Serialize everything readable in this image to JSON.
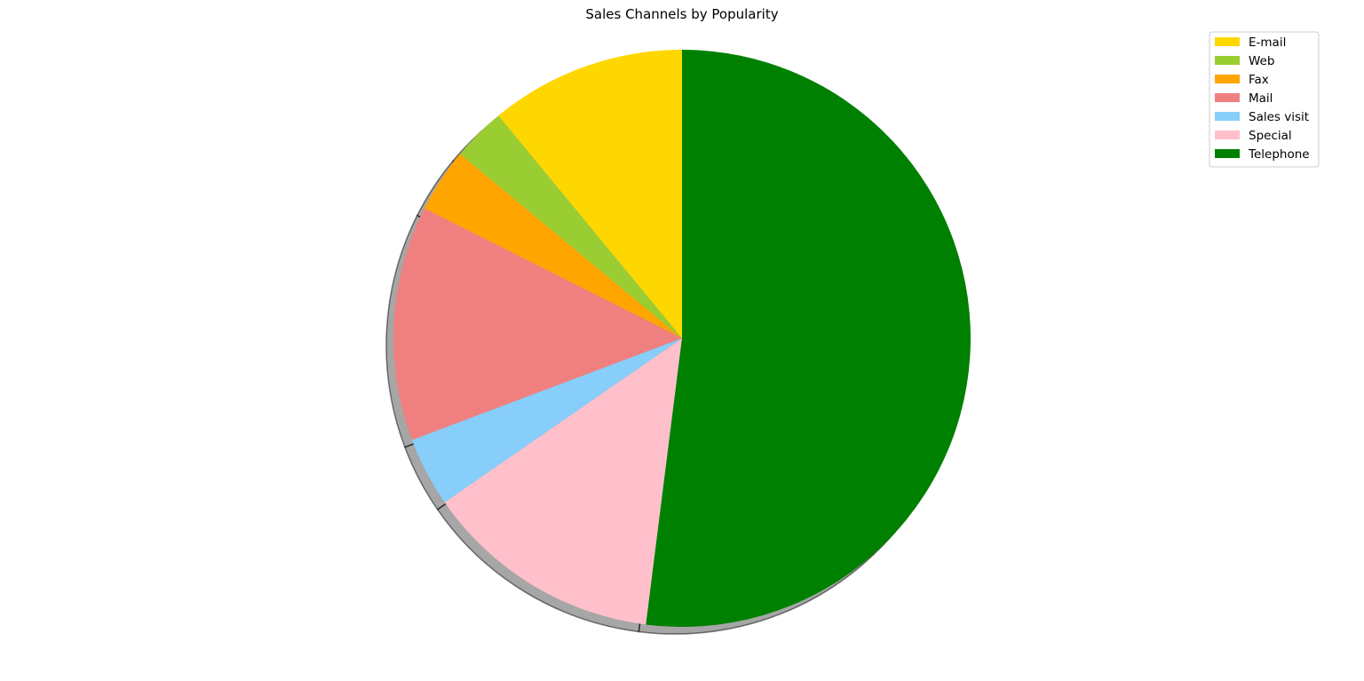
{
  "chart_data": {
    "type": "pie",
    "title": "Sales Channels by Popularity",
    "start_angle_deg": 90,
    "direction": "counterclockwise",
    "shadow": true,
    "legend_position": "top-right",
    "slices": [
      {
        "label": "E-mail",
        "value": 11.0,
        "color": "#ffd700"
      },
      {
        "label": "Web",
        "value": 3.0,
        "color": "#9acd32"
      },
      {
        "label": "Fax",
        "value": 3.6,
        "color": "#ffa500"
      },
      {
        "label": "Mail",
        "value": 13.2,
        "color": "#f08080"
      },
      {
        "label": "Sales visit",
        "value": 3.9,
        "color": "#87cefa"
      },
      {
        "label": "Special",
        "value": 13.4,
        "color": "#ffc0cb"
      },
      {
        "label": "Telephone",
        "value": 52.1,
        "color": "#008000"
      }
    ]
  }
}
